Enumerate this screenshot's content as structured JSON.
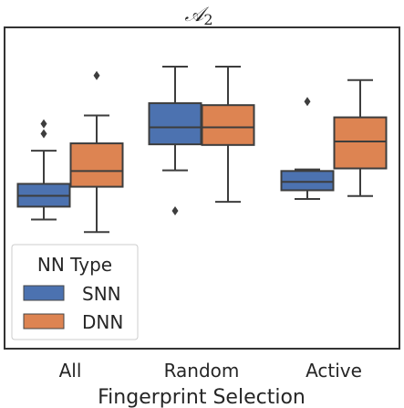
{
  "chart_data": {
    "type": "box",
    "title": "𝒜",
    "title_subscript": "2",
    "xlabel": "Fingerprint Selection",
    "ylabel": "",
    "categories": [
      "All",
      "Random",
      "Active"
    ],
    "grid": false,
    "legend": {
      "title": "NN Type",
      "placement": "lower-left",
      "entries": [
        {
          "label": "SNN",
          "color": "#4c72b0"
        },
        {
          "label": "DNN",
          "color": "#dd8452"
        }
      ]
    },
    "ylim": [
      0,
      100
    ],
    "series": [
      {
        "name": "SNN",
        "color": "#4c72b0",
        "boxes": [
          {
            "category": "All",
            "whisker_low": 40.2,
            "q1": 44.2,
            "median": 47.6,
            "q3": 51.3,
            "whisker_high": 61.6,
            "outliers": [
              66.9,
              70.0
            ]
          },
          {
            "category": "Random",
            "whisker_low": 55.5,
            "q1": 63.6,
            "median": 68.9,
            "q3": 76.4,
            "whisker_high": 87.8,
            "outliers": [
              42.9
            ]
          },
          {
            "category": "Active",
            "whisker_low": 46.6,
            "q1": 49.3,
            "median": 51.9,
            "q3": 55.3,
            "whisker_high": 55.8,
            "outliers": [
              76.9
            ]
          }
        ]
      },
      {
        "name": "DNN",
        "color": "#dd8452",
        "boxes": [
          {
            "category": "All",
            "whisker_low": 36.3,
            "q1": 50.4,
            "median": 55.3,
            "q3": 63.9,
            "whisker_high": 72.6,
            "outliers": [
              85.0
            ]
          },
          {
            "category": "Random",
            "whisker_low": 45.7,
            "q1": 63.4,
            "median": 68.9,
            "q3": 75.8,
            "whisker_high": 87.8,
            "outliers": []
          },
          {
            "category": "Active",
            "whisker_low": 47.5,
            "q1": 56.1,
            "median": 64.5,
            "q3": 72.0,
            "whisker_high": 83.6,
            "outliers": []
          }
        ]
      }
    ]
  }
}
